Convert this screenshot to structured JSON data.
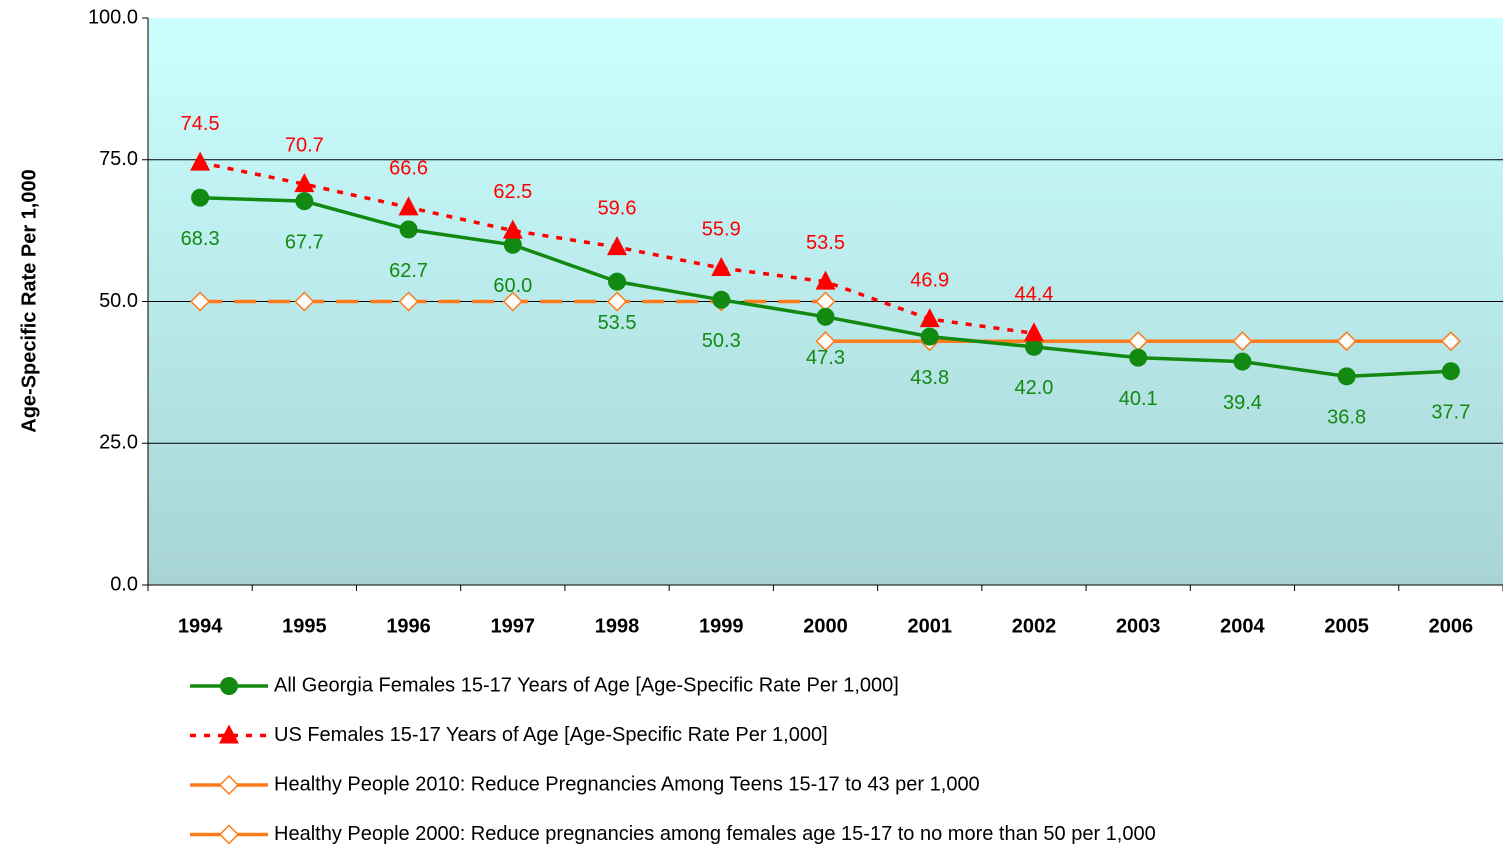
{
  "chart_data": {
    "type": "line",
    "y_label": "Age-Specific Rate Per 1,000",
    "categories": [
      "1994",
      "1995",
      "1996",
      "1997",
      "1998",
      "1999",
      "2000",
      "2001",
      "2002",
      "2003",
      "2004",
      "2005",
      "2006"
    ],
    "ylim": [
      0,
      100
    ],
    "yticks": [
      {
        "value": 0,
        "label": "0.0"
      },
      {
        "value": 25,
        "label": "25.0"
      },
      {
        "value": 50,
        "label": "50.0"
      },
      {
        "value": 75,
        "label": "75.0"
      },
      {
        "value": 100,
        "label": "100.0"
      }
    ],
    "grid": true,
    "legend": "bottom",
    "series": [
      {
        "name": "All Georgia Females 15-17 Years of Age  [Age-Specific Rate Per 1,000]",
        "color": "#128a12",
        "marker": "circle",
        "dash": false,
        "label_position": "below",
        "values": [
          68.3,
          67.7,
          62.7,
          60.0,
          53.5,
          50.3,
          47.3,
          43.8,
          42.0,
          40.1,
          39.4,
          36.8,
          37.7
        ],
        "value_labels": [
          "68.3",
          "67.7",
          "62.7",
          "60.0",
          "53.5",
          "50.3",
          "47.3",
          "43.8",
          "42.0",
          "40.1",
          "39.4",
          "36.8",
          "37.7"
        ]
      },
      {
        "name": "US Females 15-17 Years of Age [Age-Specific Rate Per 1,000]",
        "color": "#ff0000",
        "marker": "triangle",
        "dash": true,
        "label_position": "above",
        "values": [
          74.5,
          70.7,
          66.6,
          62.5,
          59.6,
          55.9,
          53.5,
          46.9,
          44.4,
          null,
          null,
          null,
          null
        ],
        "value_labels": [
          "74.5",
          "70.7",
          "66.6",
          "62.5",
          "59.6",
          "55.9",
          "53.5",
          "46.9",
          "44.4",
          null,
          null,
          null,
          null
        ]
      },
      {
        "name": "Healthy People 2010: Reduce Pregnancies Among Teens 15-17 to 43 per 1,000",
        "color": "#ff7a1a",
        "marker": "diamond",
        "dash": false,
        "values": [
          null,
          null,
          null,
          null,
          null,
          null,
          43,
          43,
          43,
          43,
          43,
          43,
          43
        ]
      },
      {
        "name": "Healthy People 2000: Reduce pregnancies among females age 15-17 to no more than 50 per 1,000",
        "color": "#ff7a1a",
        "marker": "diamond",
        "dash": true,
        "values": [
          50,
          50,
          50,
          50,
          50,
          50,
          50,
          null,
          null,
          null,
          null,
          null,
          null
        ]
      }
    ]
  }
}
